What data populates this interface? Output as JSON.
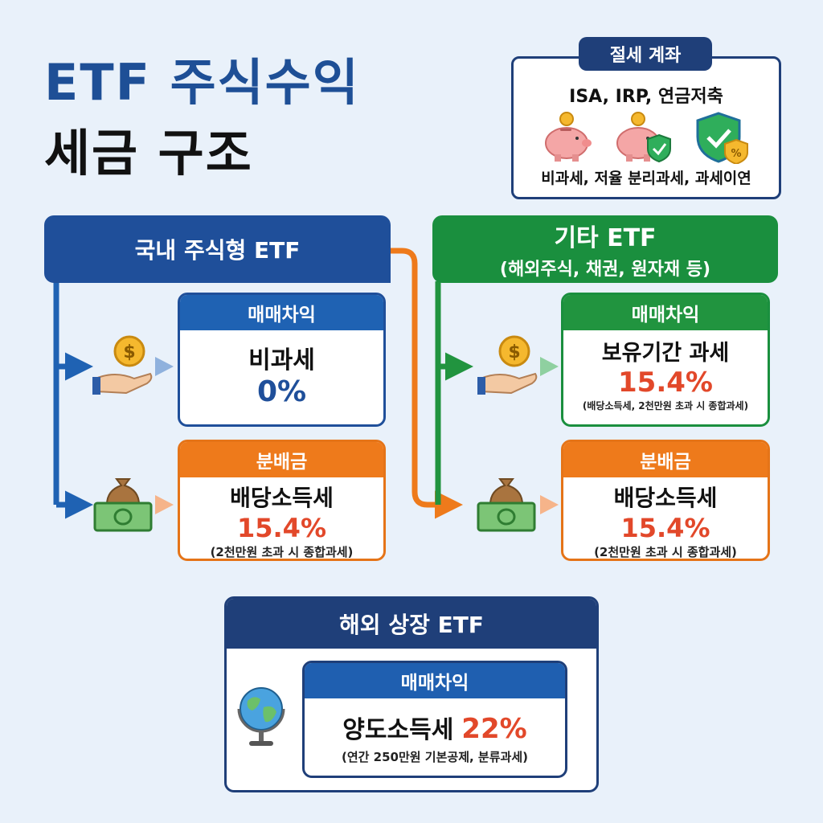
{
  "title": {
    "line1": "ETF 주식수익",
    "line2": "세금 구조"
  },
  "tax_account": {
    "badge": "절세 계좌",
    "accounts": "ISA, IRP, 연금저축",
    "benefits": "비과세, 저율 분리과세, 과세이연",
    "icons": [
      "piggy-bank-icon",
      "piggy-bank-shield-icon",
      "shield-check-icon"
    ]
  },
  "domestic": {
    "header": "국내 주식형 ETF",
    "capital_gain": {
      "label": "매매차익",
      "tax": "비과세",
      "rate": "0%"
    },
    "distribution": {
      "label": "분배금",
      "tax": "배당소득세",
      "rate": "15.4%",
      "note": "(2천만원 초과 시 종합과세)"
    }
  },
  "other": {
    "header": "기타 ETF",
    "header_sub": "(해외주식, 채권, 원자재 등)",
    "capital_gain": {
      "label": "매매차익",
      "tax": "보유기간 과세",
      "rate": "15.4%",
      "note": "(배당소득세, 2천만원 초과 시 종합과세)"
    },
    "distribution": {
      "label": "분배금",
      "tax": "배당소득세",
      "rate": "15.4%",
      "note": "(2천만원 초과 시 종합과세)"
    }
  },
  "overseas": {
    "header": "해외 상장 ETF",
    "capital_gain": {
      "label": "매매차익",
      "tax": "양도소득세",
      "rate": "22%",
      "note": "(연간 250만원 기본공제, 분류과세)"
    }
  },
  "colors": {
    "navy": "#1f3f79",
    "blue": "#1f4f9a",
    "green": "#1a8f3e",
    "orange": "#ee7a1b",
    "red": "#e2482a"
  }
}
